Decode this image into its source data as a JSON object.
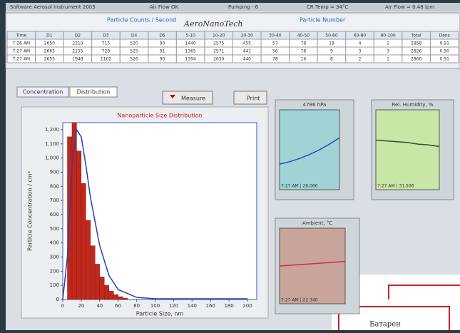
{
  "window": {
    "title": "Software Aerosol Instrument 2003",
    "status": [
      "Air Flow OK",
      "Pumping - 6",
      "CR Temp = 34°C",
      "Air Flow = 0.48 lpm"
    ]
  },
  "table": {
    "logo": "AeroNanoTech",
    "group_headers": [
      "Particle Counts / Second",
      "Particle Number"
    ],
    "header": [
      "Time",
      "D1",
      "D2",
      "D3",
      "D4",
      "D5",
      "5-10",
      "10-20",
      "20-30",
      "30-40",
      "40-50",
      "50-60",
      "60-80",
      "80-100",
      "Total",
      "Dens"
    ],
    "rows": [
      [
        "7:26 AM",
        "2650",
        "2219",
        "715",
        "520",
        "90",
        "1440",
        "2575",
        "455",
        "57",
        "78",
        "18",
        "4",
        "2",
        "2858",
        "0.91"
      ],
      [
        "7:27 AM",
        "2665",
        "2155",
        "728",
        "525",
        "91",
        "1365",
        "2571",
        "441",
        "56",
        "78",
        "9",
        "3",
        "3",
        "2826",
        "0.90"
      ],
      [
        "7:27 AM",
        "2655",
        "1948",
        "1102",
        "526",
        "90",
        "1394",
        "2630",
        "440",
        "78",
        "16",
        "8",
        "2",
        "1",
        "2860",
        "0.91"
      ]
    ]
  },
  "buttons": {
    "measure": "Measure",
    "print": "Print"
  },
  "tabs": [
    "Concentration",
    "Distribution"
  ],
  "chart_data": [
    {
      "type": "histogram",
      "title": "Nanoparticle Size Distribution",
      "x_label": "Particle Size, nm",
      "y_label": "Particle Concentration / cm³",
      "bins": [
        5,
        10,
        15,
        20,
        25,
        30,
        35,
        40,
        45,
        50,
        55,
        60,
        65,
        70
      ],
      "values": [
        1150,
        1250,
        1050,
        820,
        560,
        380,
        250,
        160,
        100,
        60,
        35,
        20,
        10
      ],
      "color": "#c0281c",
      "fit": {
        "color": "#2a3fb0",
        "x": [
          0,
          5,
          10,
          15,
          20,
          25,
          30,
          40,
          50,
          60,
          80,
          100,
          150,
          200
        ],
        "values": [
          0,
          300,
          950,
          1200,
          1150,
          950,
          720,
          380,
          170,
          70,
          15,
          5,
          5,
          5
        ]
      },
      "xlim": [
        0,
        210
      ],
      "xticks": [
        0,
        20,
        40,
        60,
        80,
        100,
        120,
        140,
        160,
        180,
        200
      ],
      "ylim": [
        0,
        1250
      ],
      "yticks": [
        0,
        100,
        200,
        300,
        400,
        500,
        600,
        700,
        800,
        900,
        {
          "value": 1000,
          "label": "1,000"
        },
        {
          "value": 1100,
          "label": "1,100"
        },
        {
          "value": 1200,
          "label": "1,200"
        }
      ]
    },
    {
      "type": "line",
      "title": "4786 hPa",
      "readout": "7:27 AM | 26.066",
      "color": "#1d4fa8",
      "background": "#9fd3d6",
      "values": [
        3.2,
        3.5,
        3.9,
        4.4,
        5.0,
        5.7,
        6.5
      ],
      "ylim": [
        0,
        10
      ]
    },
    {
      "type": "line",
      "title": "Rel. Humidity, %",
      "readout": "7:27 AM | 31.506",
      "color": "#2c4f2c",
      "background": "#c8e6a6",
      "values": [
        6.2,
        6.1,
        6.0,
        5.9,
        5.7,
        5.6,
        5.4
      ],
      "ylim": [
        0,
        10
      ]
    },
    {
      "type": "line",
      "title": "Ambient, °C",
      "readout": "7:27 AM | 22.340",
      "color": "#c0304a",
      "background": "#c9a49a",
      "values": [
        5.0,
        5.1,
        5.2,
        5.3,
        5.4,
        5.5,
        5.6
      ],
      "ylim": [
        0,
        10
      ]
    }
  ],
  "overlay": {
    "label": "Батареи"
  }
}
